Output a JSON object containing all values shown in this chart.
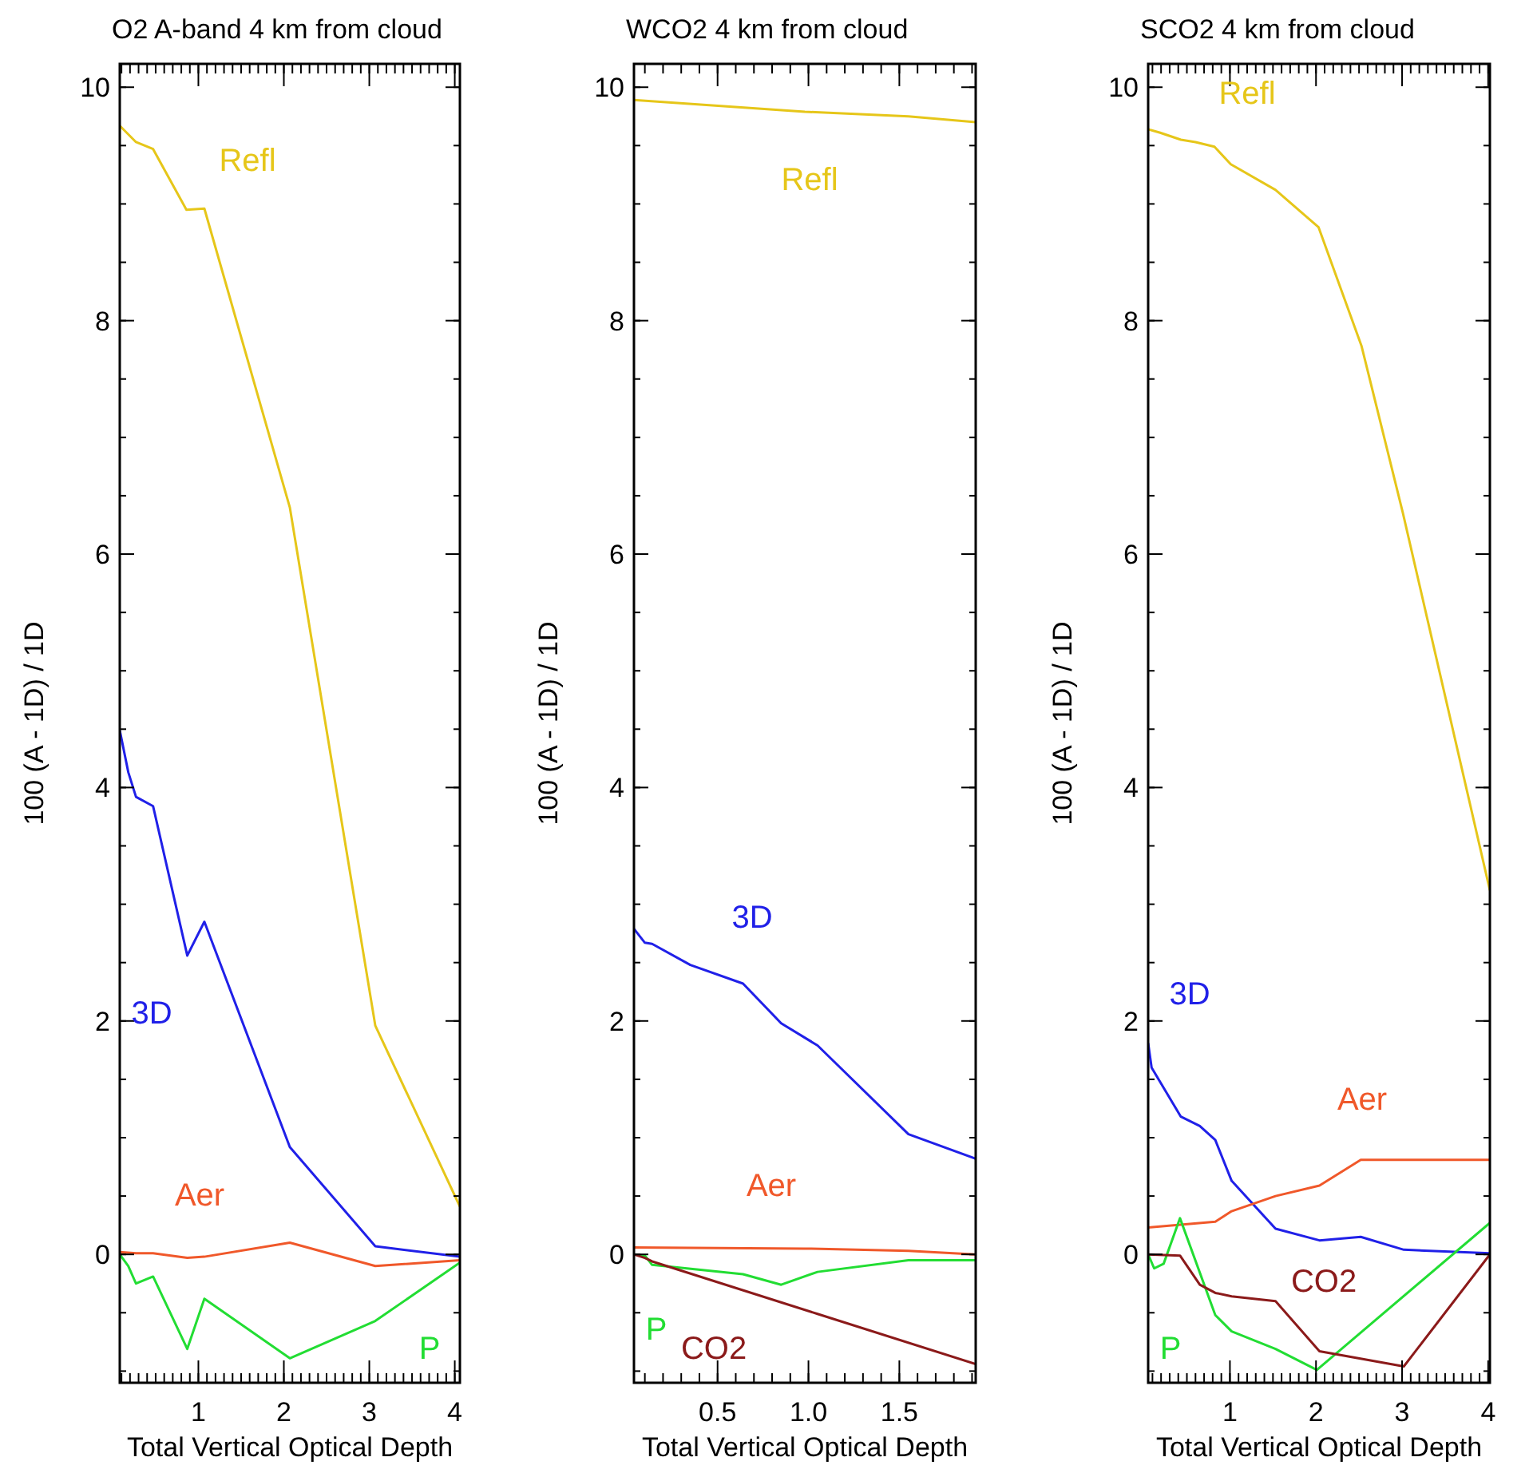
{
  "chart_data": [
    {
      "type": "line",
      "title": "O2 A-band 4 km from cloud",
      "xlabel": "Total Vertical Optical Depth",
      "ylabel": "100 (A - 1D) / 1D",
      "xlim": [
        0.08,
        4.06
      ],
      "ylim": [
        -1.1,
        10.2
      ],
      "xticks": [
        1,
        2,
        3,
        4
      ],
      "yticks": [
        0,
        2,
        4,
        6,
        8,
        10
      ],
      "legend": false,
      "series": [
        {
          "name": "Refl",
          "color": "#e6c619",
          "x": [
            0.08,
            0.27,
            0.47,
            0.86,
            1.07,
            2.07,
            3.07,
            4.06
          ],
          "values": [
            9.67,
            9.53,
            9.47,
            8.95,
            8.96,
            6.4,
            1.96,
            0.41
          ]
        },
        {
          "name": "3D",
          "color": "#2020e8",
          "x": [
            0.08,
            0.18,
            0.27,
            0.47,
            0.87,
            1.07,
            2.07,
            3.07,
            4.06
          ],
          "values": [
            4.49,
            4.13,
            3.92,
            3.84,
            2.56,
            2.85,
            0.92,
            0.07,
            -0.02
          ]
        },
        {
          "name": "Aer",
          "color": "#f0582a",
          "x": [
            0.08,
            0.27,
            0.47,
            0.87,
            1.07,
            2.07,
            3.07,
            4.06
          ],
          "values": [
            0.02,
            0.01,
            0.01,
            -0.03,
            -0.02,
            0.1,
            -0.1,
            -0.05
          ]
        },
        {
          "name": "P",
          "color": "#22dd33",
          "x": [
            0.08,
            0.18,
            0.27,
            0.47,
            0.87,
            1.07,
            2.07,
            3.07,
            4.06
          ],
          "values": [
            0.0,
            -0.1,
            -0.25,
            -0.19,
            -0.81,
            -0.38,
            -0.89,
            -0.57,
            -0.07
          ]
        }
      ]
    },
    {
      "type": "line",
      "title": "WCO2 4 km from cloud",
      "xlabel": "Total Vertical Optical Depth",
      "ylabel": "100 (A - 1D) / 1D",
      "xlim": [
        0.04,
        1.92
      ],
      "ylim": [
        -1.1,
        10.2
      ],
      "xticks": [
        {
          "value": 0.5,
          "label": "0.5"
        },
        {
          "value": 1,
          "label": "1.0"
        },
        {
          "value": 1.5,
          "label": "1.5"
        }
      ],
      "yticks": [
        0,
        2,
        4,
        6,
        8,
        10
      ],
      "legend": false,
      "series": [
        {
          "name": "Refl",
          "color": "#e6c619",
          "x": [
            0.04,
            0.98,
            1.55,
            1.92
          ],
          "values": [
            9.89,
            9.79,
            9.75,
            9.7
          ]
        },
        {
          "name": "3D",
          "color": "#2020e8",
          "x": [
            0.04,
            0.1,
            0.14,
            0.35,
            0.64,
            0.85,
            1.05,
            1.55,
            1.92
          ],
          "values": [
            2.79,
            2.67,
            2.66,
            2.48,
            2.32,
            1.98,
            1.79,
            1.03,
            0.82
          ]
        },
        {
          "name": "Aer",
          "color": "#f0582a",
          "x": [
            0.04,
            0.98,
            1.55,
            1.92
          ],
          "values": [
            0.06,
            0.05,
            0.03,
            0.0
          ]
        },
        {
          "name": "P",
          "color": "#22dd33",
          "x": [
            0.04,
            0.1,
            0.14,
            0.64,
            0.85,
            1.05,
            1.55,
            1.92
          ],
          "values": [
            0.0,
            -0.01,
            -0.09,
            -0.17,
            -0.26,
            -0.15,
            -0.05,
            -0.05
          ]
        },
        {
          "name": "CO2",
          "color": "#8b1a1a",
          "x": [
            0.04,
            0.1,
            0.14,
            1.05,
            1.92
          ],
          "values": [
            0.0,
            -0.03,
            -0.06,
            -0.51,
            -0.94
          ]
        }
      ]
    },
    {
      "type": "line",
      "title": "SCO2 4 km from cloud",
      "xlabel": "Total Vertical Optical Depth",
      "ylabel": "100 (A - 1D) / 1D",
      "xlim": [
        0.05,
        4.02
      ],
      "ylim": [
        -1.1,
        10.2
      ],
      "xticks": [
        1,
        2,
        3,
        4
      ],
      "yticks": [
        0,
        2,
        4,
        6,
        8,
        10
      ],
      "legend": false,
      "series": [
        {
          "name": "Refl",
          "color": "#e6c619",
          "x": [
            0.05,
            0.19,
            0.43,
            0.6,
            0.82,
            1.01,
            1.53,
            2.03,
            2.53,
            3.01,
            4.02
          ],
          "values": [
            9.64,
            9.61,
            9.55,
            9.53,
            9.49,
            9.34,
            9.12,
            8.8,
            7.78,
            6.35,
            3.12
          ]
        },
        {
          "name": "3D",
          "color": "#2020e8",
          "x": [
            0.05,
            0.09,
            0.43,
            0.65,
            0.83,
            1.02,
            1.53,
            2.04,
            2.52,
            3.02,
            4.02
          ],
          "values": [
            1.81,
            1.6,
            1.18,
            1.1,
            0.98,
            0.63,
            0.22,
            0.12,
            0.15,
            0.04,
            0.01
          ]
        },
        {
          "name": "Aer",
          "color": "#f0582a",
          "x": [
            0.05,
            0.83,
            1.02,
            1.53,
            2.04,
            2.52,
            4.02
          ],
          "values": [
            0.23,
            0.28,
            0.37,
            0.5,
            0.59,
            0.81,
            0.81
          ]
        },
        {
          "name": "P",
          "color": "#22dd33",
          "x": [
            0.05,
            0.12,
            0.23,
            0.42,
            0.83,
            1.02,
            1.53,
            2.01,
            4.02
          ],
          "values": [
            0.0,
            -0.12,
            -0.08,
            0.31,
            -0.52,
            -0.66,
            -0.81,
            -0.99,
            0.27
          ]
        },
        {
          "name": "CO2",
          "color": "#8b1a1a",
          "x": [
            0.05,
            0.42,
            0.65,
            0.83,
            1.02,
            1.53,
            2.04,
            3.02,
            4.02
          ],
          "values": [
            0.0,
            -0.01,
            -0.26,
            -0.33,
            -0.36,
            -0.4,
            -0.83,
            -0.96,
            0.0
          ]
        }
      ]
    }
  ]
}
